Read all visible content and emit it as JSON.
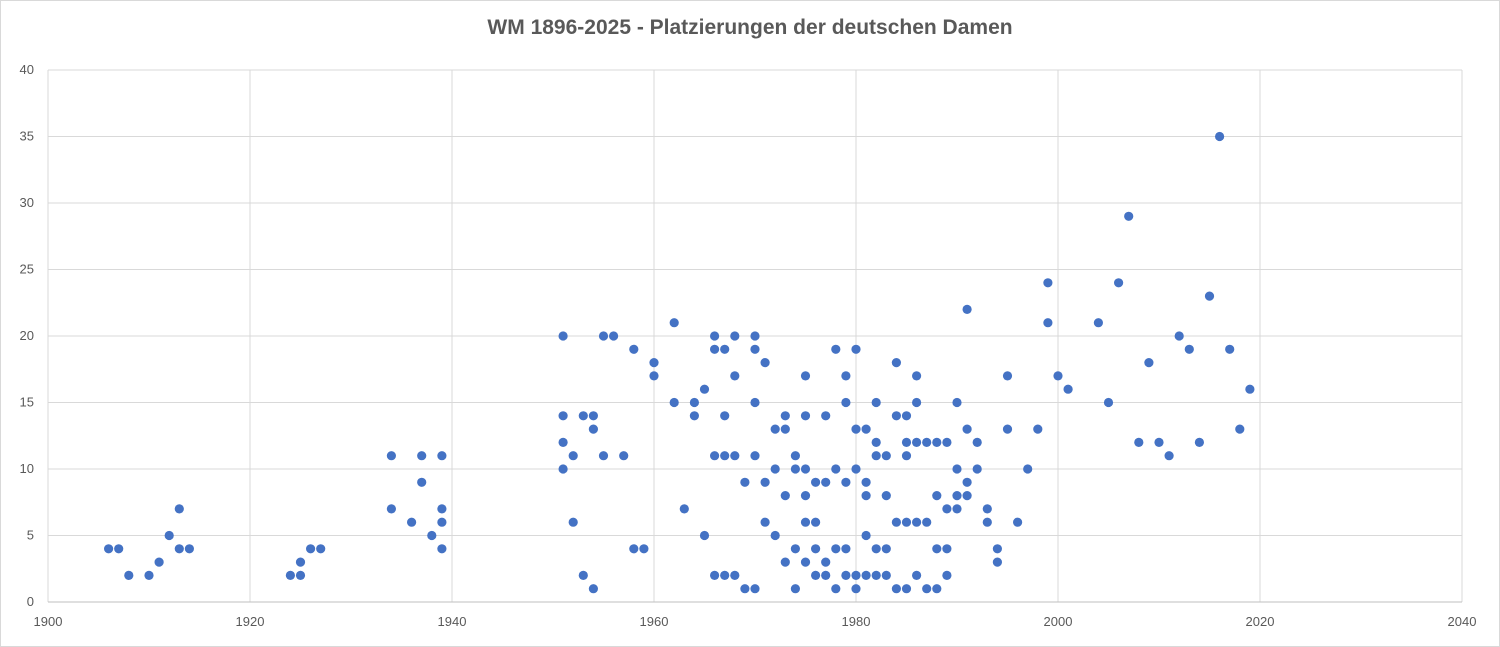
{
  "chart_data": {
    "type": "scatter",
    "title": "WM 1896-2025 - Platzierungen der deutschen Damen",
    "xlabel": "",
    "ylabel": "",
    "xlim": [
      1900,
      2040
    ],
    "ylim": [
      0,
      40
    ],
    "x_ticks": [
      1900,
      1920,
      1940,
      1960,
      1980,
      2000,
      2020,
      2040
    ],
    "y_ticks": [
      0,
      5,
      10,
      15,
      20,
      25,
      30,
      35,
      40
    ],
    "grid": true,
    "legend": "none",
    "marker_color": "#4472c4",
    "points": [
      [
        1906,
        4
      ],
      [
        1907,
        4
      ],
      [
        1908,
        2
      ],
      [
        1910,
        2
      ],
      [
        1911,
        3
      ],
      [
        1912,
        5
      ],
      [
        1913,
        7
      ],
      [
        1913,
        4
      ],
      [
        1914,
        4
      ],
      [
        1924,
        2
      ],
      [
        1925,
        2
      ],
      [
        1925,
        3
      ],
      [
        1926,
        4
      ],
      [
        1927,
        4
      ],
      [
        1934,
        11
      ],
      [
        1934,
        7
      ],
      [
        1936,
        6
      ],
      [
        1937,
        11
      ],
      [
        1937,
        9
      ],
      [
        1938,
        5
      ],
      [
        1939,
        11
      ],
      [
        1939,
        7
      ],
      [
        1939,
        6
      ],
      [
        1939,
        4
      ],
      [
        1951,
        20
      ],
      [
        1951,
        14
      ],
      [
        1951,
        12
      ],
      [
        1951,
        10
      ],
      [
        1952,
        11
      ],
      [
        1952,
        6
      ],
      [
        1953,
        14
      ],
      [
        1953,
        2
      ],
      [
        1954,
        14
      ],
      [
        1954,
        13
      ],
      [
        1954,
        1
      ],
      [
        1955,
        20
      ],
      [
        1955,
        11
      ],
      [
        1956,
        20
      ],
      [
        1957,
        11
      ],
      [
        1958,
        19
      ],
      [
        1958,
        4
      ],
      [
        1959,
        4
      ],
      [
        1960,
        18
      ],
      [
        1960,
        17
      ],
      [
        1962,
        21
      ],
      [
        1962,
        15
      ],
      [
        1963,
        7
      ],
      [
        1964,
        15
      ],
      [
        1964,
        14
      ],
      [
        1965,
        16
      ],
      [
        1965,
        5
      ],
      [
        1966,
        20
      ],
      [
        1966,
        19
      ],
      [
        1966,
        11
      ],
      [
        1966,
        2
      ],
      [
        1967,
        19
      ],
      [
        1967,
        14
      ],
      [
        1967,
        11
      ],
      [
        1967,
        2
      ],
      [
        1968,
        20
      ],
      [
        1968,
        17
      ],
      [
        1968,
        11
      ],
      [
        1968,
        2
      ],
      [
        1969,
        9
      ],
      [
        1969,
        1
      ],
      [
        1970,
        20
      ],
      [
        1970,
        19
      ],
      [
        1970,
        15
      ],
      [
        1970,
        11
      ],
      [
        1970,
        1
      ],
      [
        1971,
        18
      ],
      [
        1971,
        9
      ],
      [
        1971,
        6
      ],
      [
        1972,
        13
      ],
      [
        1972,
        10
      ],
      [
        1972,
        5
      ],
      [
        1973,
        14
      ],
      [
        1973,
        13
      ],
      [
        1973,
        8
      ],
      [
        1973,
        3
      ],
      [
        1974,
        11
      ],
      [
        1974,
        10
      ],
      [
        1974,
        4
      ],
      [
        1974,
        1
      ],
      [
        1975,
        17
      ],
      [
        1975,
        14
      ],
      [
        1975,
        10
      ],
      [
        1975,
        8
      ],
      [
        1975,
        6
      ],
      [
        1975,
        3
      ],
      [
        1976,
        9
      ],
      [
        1976,
        6
      ],
      [
        1976,
        4
      ],
      [
        1976,
        2
      ],
      [
        1977,
        14
      ],
      [
        1977,
        9
      ],
      [
        1977,
        3
      ],
      [
        1977,
        2
      ],
      [
        1978,
        19
      ],
      [
        1978,
        10
      ],
      [
        1978,
        4
      ],
      [
        1978,
        1
      ],
      [
        1979,
        17
      ],
      [
        1979,
        15
      ],
      [
        1979,
        9
      ],
      [
        1979,
        4
      ],
      [
        1979,
        2
      ],
      [
        1980,
        19
      ],
      [
        1980,
        13
      ],
      [
        1980,
        10
      ],
      [
        1980,
        2
      ],
      [
        1980,
        1
      ],
      [
        1981,
        13
      ],
      [
        1981,
        9
      ],
      [
        1981,
        8
      ],
      [
        1981,
        5
      ],
      [
        1981,
        2
      ],
      [
        1982,
        15
      ],
      [
        1982,
        12
      ],
      [
        1982,
        11
      ],
      [
        1982,
        4
      ],
      [
        1982,
        2
      ],
      [
        1983,
        11
      ],
      [
        1983,
        8
      ],
      [
        1983,
        4
      ],
      [
        1983,
        2
      ],
      [
        1984,
        18
      ],
      [
        1984,
        14
      ],
      [
        1984,
        6
      ],
      [
        1984,
        1
      ],
      [
        1985,
        14
      ],
      [
        1985,
        12
      ],
      [
        1985,
        11
      ],
      [
        1985,
        6
      ],
      [
        1985,
        1
      ],
      [
        1986,
        17
      ],
      [
        1986,
        15
      ],
      [
        1986,
        12
      ],
      [
        1986,
        6
      ],
      [
        1986,
        2
      ],
      [
        1987,
        12
      ],
      [
        1987,
        6
      ],
      [
        1987,
        1
      ],
      [
        1988,
        12
      ],
      [
        1988,
        8
      ],
      [
        1988,
        4
      ],
      [
        1988,
        1
      ],
      [
        1989,
        12
      ],
      [
        1989,
        7
      ],
      [
        1989,
        4
      ],
      [
        1989,
        2
      ],
      [
        1990,
        15
      ],
      [
        1990,
        10
      ],
      [
        1990,
        8
      ],
      [
        1990,
        7
      ],
      [
        1991,
        22
      ],
      [
        1991,
        13
      ],
      [
        1991,
        9
      ],
      [
        1991,
        8
      ],
      [
        1992,
        12
      ],
      [
        1992,
        10
      ],
      [
        1993,
        7
      ],
      [
        1993,
        6
      ],
      [
        1994,
        4
      ],
      [
        1994,
        3
      ],
      [
        1995,
        17
      ],
      [
        1995,
        13
      ],
      [
        1996,
        6
      ],
      [
        1997,
        10
      ],
      [
        1998,
        13
      ],
      [
        1999,
        24
      ],
      [
        1999,
        21
      ],
      [
        2000,
        17
      ],
      [
        2001,
        16
      ],
      [
        2004,
        21
      ],
      [
        2005,
        15
      ],
      [
        2006,
        24
      ],
      [
        2007,
        29
      ],
      [
        2008,
        12
      ],
      [
        2009,
        18
      ],
      [
        2010,
        12
      ],
      [
        2011,
        11
      ],
      [
        2012,
        20
      ],
      [
        2013,
        19
      ],
      [
        2014,
        12
      ],
      [
        2015,
        23
      ],
      [
        2016,
        35
      ],
      [
        2017,
        19
      ],
      [
        2018,
        13
      ],
      [
        2019,
        16
      ]
    ]
  }
}
